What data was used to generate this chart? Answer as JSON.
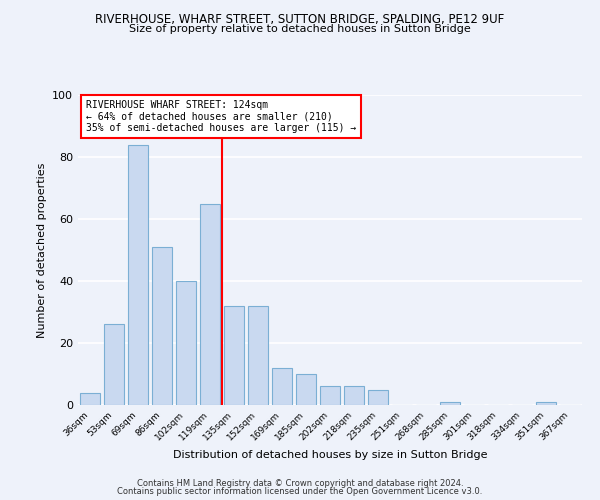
{
  "title": "RIVERHOUSE, WHARF STREET, SUTTON BRIDGE, SPALDING, PE12 9UF",
  "subtitle": "Size of property relative to detached houses in Sutton Bridge",
  "xlabel": "Distribution of detached houses by size in Sutton Bridge",
  "ylabel": "Number of detached properties",
  "bar_labels": [
    "36sqm",
    "53sqm",
    "69sqm",
    "86sqm",
    "102sqm",
    "119sqm",
    "135sqm",
    "152sqm",
    "169sqm",
    "185sqm",
    "202sqm",
    "218sqm",
    "235sqm",
    "251sqm",
    "268sqm",
    "285sqm",
    "301sqm",
    "318sqm",
    "334sqm",
    "351sqm",
    "367sqm"
  ],
  "bar_values": [
    4,
    26,
    84,
    51,
    40,
    65,
    32,
    32,
    12,
    10,
    6,
    6,
    5,
    0,
    0,
    1,
    0,
    0,
    0,
    1,
    0
  ],
  "bar_color": "#c9d9f0",
  "bar_edgecolor": "#7bafd4",
  "vline_x": 5.5,
  "vline_color": "red",
  "annotation_line1": "RIVERHOUSE WHARF STREET: 124sqm",
  "annotation_line2": "← 64% of detached houses are smaller (210)",
  "annotation_line3": "35% of semi-detached houses are larger (115) →",
  "annotation_box_color": "white",
  "annotation_box_edgecolor": "red",
  "ylim": [
    0,
    100
  ],
  "footer1": "Contains HM Land Registry data © Crown copyright and database right 2024.",
  "footer2": "Contains public sector information licensed under the Open Government Licence v3.0.",
  "background_color": "#eef2fa",
  "grid_color": "white"
}
